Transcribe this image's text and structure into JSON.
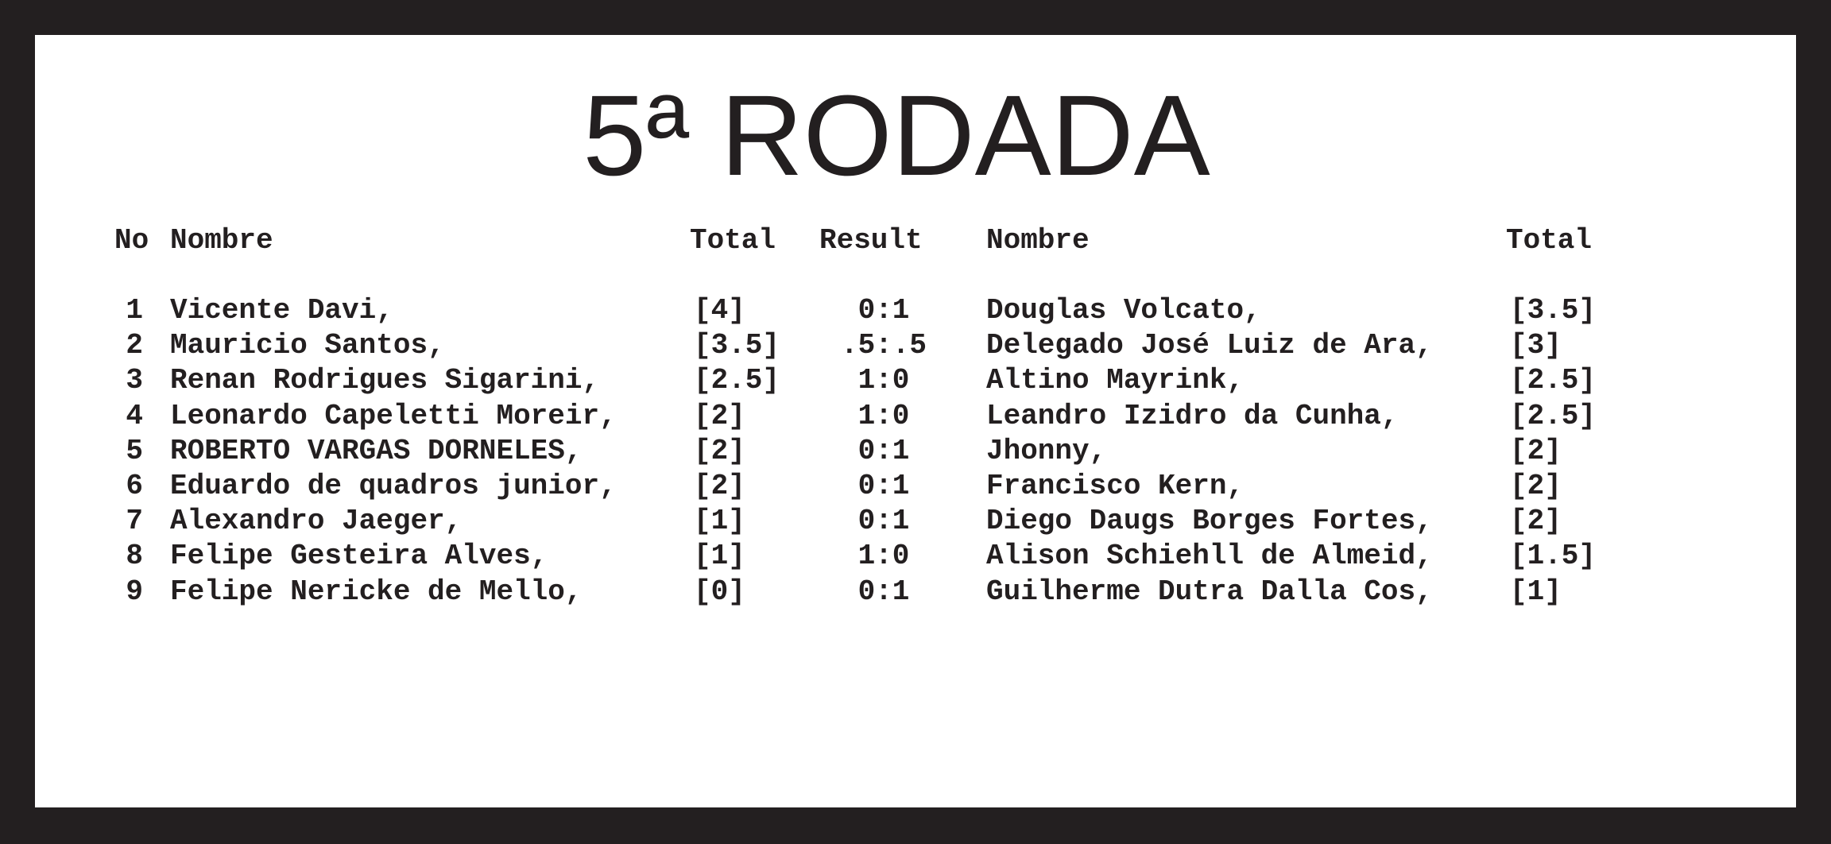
{
  "title": "5ª RODADA",
  "headers": {
    "no": "No",
    "name_left": "Nombre",
    "total_left": "Total",
    "result": "Result",
    "name_right": "Nombre",
    "total_right": "Total"
  },
  "rows": [
    {
      "no": "1",
      "white": "Vicente Davi,",
      "white_total": "[4]",
      "result": "0:1",
      "black": "Douglas Volcato,",
      "black_total": "[3.5]"
    },
    {
      "no": "2",
      "white": "Mauricio Santos,",
      "white_total": "[3.5]",
      "result": ".5:.5",
      "black": "Delegado José Luiz de Ara,",
      "black_total": "[3]"
    },
    {
      "no": "3",
      "white": "Renan Rodrigues Sigarini,",
      "white_total": "[2.5]",
      "result": "1:0",
      "black": "Altino Mayrink,",
      "black_total": "[2.5]"
    },
    {
      "no": "4",
      "white": "Leonardo Capeletti Moreir,",
      "white_total": "[2]",
      "result": "1:0",
      "black": "Leandro Izidro da Cunha,",
      "black_total": "[2.5]"
    },
    {
      "no": "5",
      "white": "ROBERTO VARGAS DORNELES,",
      "white_total": "[2]",
      "result": "0:1",
      "black": "Jhonny,",
      "black_total": "[2]"
    },
    {
      "no": "6",
      "white": "Eduardo de quadros junior,",
      "white_total": "[2]",
      "result": "0:1",
      "black": "Francisco Kern,",
      "black_total": "[2]"
    },
    {
      "no": "7",
      "white": "Alexandro Jaeger,",
      "white_total": "[1]",
      "result": "0:1",
      "black": "Diego Daugs Borges Fortes,",
      "black_total": "[2]"
    },
    {
      "no": "8",
      "white": "Felipe Gesteira Alves,",
      "white_total": "[1]",
      "result": "1:0",
      "black": "Alison Schiehll de Almeid,",
      "black_total": "[1.5]"
    },
    {
      "no": "9",
      "white": "Felipe Nericke de Mello,",
      "white_total": "[0]",
      "result": "0:1",
      "black": "Guilherme Dutra Dalla Cos,",
      "black_total": "[1]"
    }
  ]
}
